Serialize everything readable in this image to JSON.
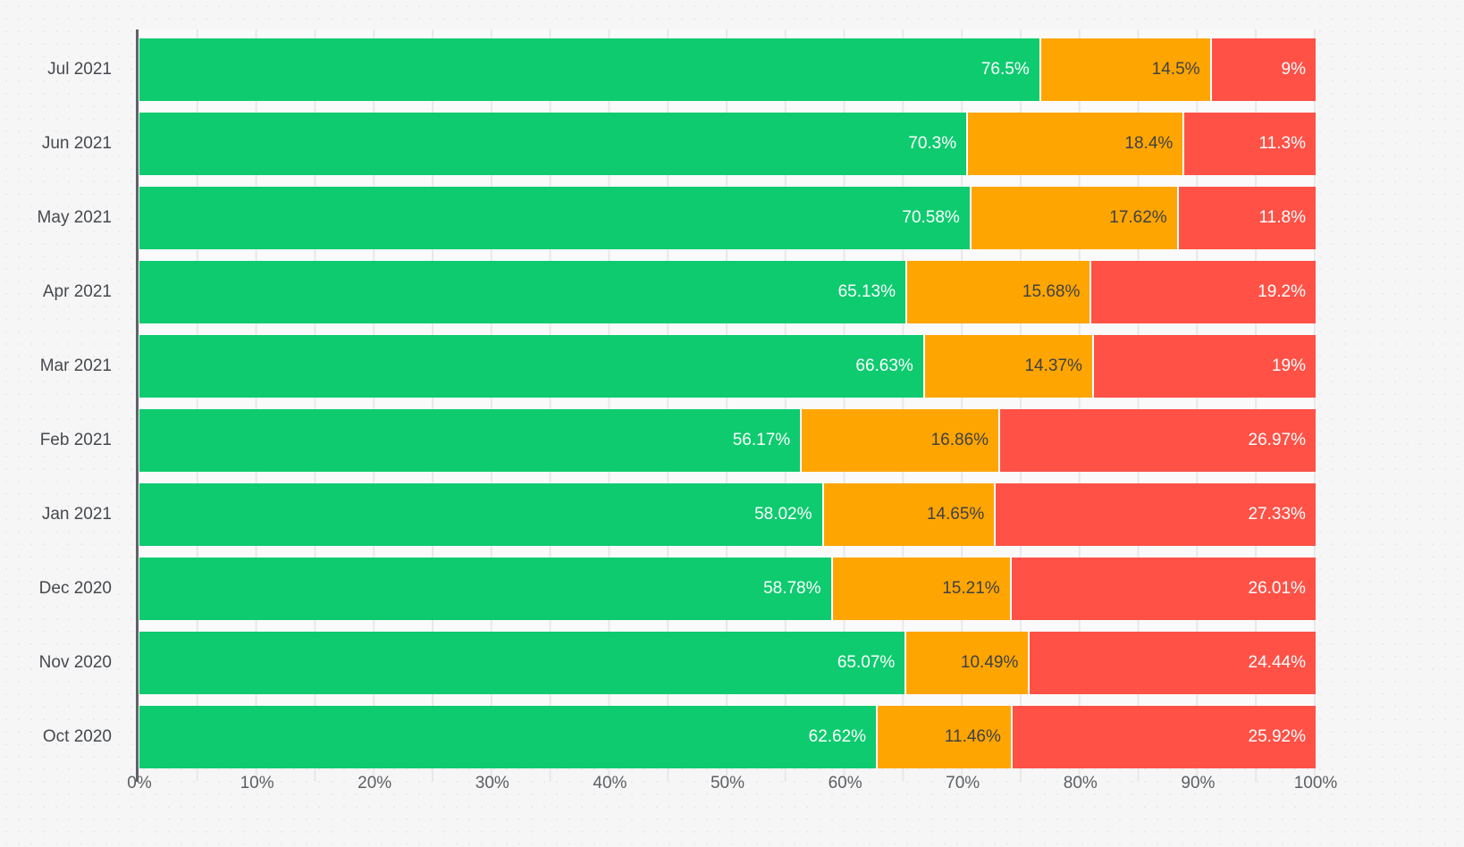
{
  "chart_data": {
    "type": "bar",
    "orientation": "horizontal",
    "stacked": true,
    "unit": "%",
    "title": "",
    "xlabel": "",
    "ylabel": "",
    "legend": false,
    "grid": true,
    "categories": [
      "Jul 2021",
      "Jun 2021",
      "May 2021",
      "Apr 2021",
      "Mar 2021",
      "Feb 2021",
      "Jan 2021",
      "Dec 2020",
      "Nov 2020",
      "Oct 2020"
    ],
    "series": [
      {
        "name": "green-segment",
        "color": "#0ECB6F",
        "label_color": "#ffffff",
        "values": [
          76.5,
          70.3,
          70.58,
          65.13,
          66.63,
          56.17,
          58.02,
          58.78,
          65.07,
          62.62
        ],
        "labels": [
          "76.5%",
          "70.3%",
          "70.58%",
          "65.13%",
          "66.63%",
          "56.17%",
          "58.02%",
          "58.78%",
          "65.07%",
          "62.62%"
        ]
      },
      {
        "name": "orange-segment",
        "color": "#FFA502",
        "label_color": "#3e4145",
        "values": [
          14.5,
          18.4,
          17.62,
          15.68,
          14.37,
          16.86,
          14.65,
          15.21,
          10.49,
          11.46
        ],
        "labels": [
          "14.5%",
          "18.4%",
          "17.62%",
          "15.68%",
          "14.37%",
          "16.86%",
          "14.65%",
          "15.21%",
          "10.49%",
          "11.46%"
        ]
      },
      {
        "name": "red-segment",
        "color": "#FF5146",
        "label_color": "#ffffff",
        "values": [
          9,
          11.3,
          11.8,
          19.2,
          19,
          26.97,
          27.33,
          26.01,
          24.44,
          25.92
        ],
        "labels": [
          "9%",
          "11.3%",
          "11.8%",
          "19.2%",
          "19%",
          "26.97%",
          "27.33%",
          "26.01%",
          "24.44%",
          "25.92%"
        ]
      }
    ],
    "x_axis": {
      "min": 0,
      "max": 100,
      "major_tick_step": 10,
      "minor_grid_step": 5,
      "tick_labels": [
        "0%",
        "10%",
        "20%",
        "30%",
        "40%",
        "50%",
        "60%",
        "70%",
        "80%",
        "90%",
        "100%"
      ]
    },
    "colors": {
      "background": "#f6f6f7",
      "plot_background": "#fafafb",
      "gridline": "#e8e8ea",
      "axis_line": "#5f6267",
      "axis_label": "#5c5f62",
      "category_label": "#46494d"
    }
  }
}
